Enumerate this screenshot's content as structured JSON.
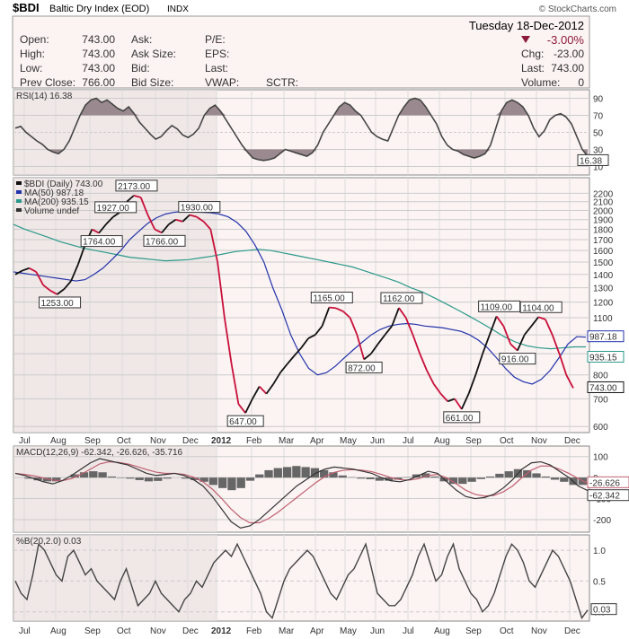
{
  "header": {
    "symbol": "$BDI",
    "name": "Baltic Dry Index (EOD)",
    "exchange": "INDX",
    "copyright": "© StockCharts.com",
    "date": "Tuesday 18-Dec-2012",
    "change_pct": "-3.00%",
    "fields": {
      "open_label": "Open:",
      "open": "743.00",
      "high_label": "High:",
      "high": "743.00",
      "low_label": "Low:",
      "low": "743.00",
      "prev_label": "Prev Close:",
      "prev": "766.00",
      "ask_label": "Ask:",
      "asksize_label": "Ask Size:",
      "bid_label": "Bid:",
      "bidsize_label": "Bid Size:",
      "pe_label": "P/E:",
      "eps_label": "EPS:",
      "last_label": "Last:",
      "vwap_label": "VWAP:",
      "sctr_label": "SCTR:",
      "chg_label": "Chg:",
      "chg": "-23.00",
      "last2_label": "Last:",
      "last2": "743.00",
      "volume_label": "Volume:",
      "volume": "0"
    },
    "colors": {
      "down": "#8b1a3a"
    }
  },
  "chart_data": [
    {
      "type": "line",
      "id": "rsi",
      "legend": "RSI(14) 16.38",
      "last_value": "16.38",
      "ylim": [
        0,
        100
      ],
      "yticks": [
        10,
        30,
        50,
        70,
        90
      ],
      "overbought": 70,
      "oversold": 30,
      "x": [
        0,
        4,
        8,
        12,
        16,
        20,
        24,
        28,
        32,
        36,
        40,
        44,
        48,
        52,
        56,
        60,
        64,
        68,
        72,
        76,
        80,
        84,
        88,
        92,
        96,
        100,
        104,
        108,
        112,
        116,
        120,
        124,
        128,
        132,
        136,
        140,
        144,
        148,
        152,
        156,
        160,
        164,
        168,
        172,
        176,
        180,
        184,
        188,
        192,
        196,
        200,
        204,
        208,
        212,
        216,
        220,
        224,
        228,
        232,
        236,
        240,
        244,
        248,
        252,
        256,
        260,
        264,
        268,
        272,
        276,
        280,
        284,
        288,
        292,
        296,
        300,
        304,
        308,
        312,
        316,
        320,
        324,
        328,
        332,
        336,
        340,
        344,
        348,
        352,
        356,
        360,
        364,
        368,
        372,
        376,
        380,
        384,
        388,
        392,
        396,
        400,
        404,
        408,
        412,
        416,
        420,
        424
      ],
      "values": [
        55,
        57,
        50,
        45,
        40,
        36,
        30,
        27,
        25,
        30,
        40,
        55,
        70,
        82,
        88,
        90,
        85,
        88,
        83,
        78,
        75,
        80,
        72,
        62,
        55,
        48,
        42,
        45,
        52,
        58,
        54,
        47,
        44,
        48,
        55,
        70,
        78,
        82,
        75,
        65,
        55,
        45,
        35,
        27,
        20,
        18,
        17,
        18,
        20,
        25,
        30,
        28,
        26,
        24,
        22,
        26,
        35,
        50,
        60,
        70,
        80,
        85,
        82,
        75,
        70,
        60,
        50,
        45,
        42,
        40,
        55,
        70,
        80,
        88,
        90,
        88,
        80,
        70,
        60,
        45,
        35,
        30,
        28,
        24,
        22,
        20,
        22,
        25,
        35,
        55,
        75,
        85,
        88,
        85,
        80,
        70,
        55,
        45,
        52,
        65,
        70,
        72,
        68,
        60,
        45,
        30,
        22
      ]
    },
    {
      "type": "line",
      "id": "price",
      "legend": [
        "$BDI (Daily) 743.00",
        "MA(50) 987.18",
        "MA(200) 935.15",
        "Volume undef"
      ],
      "series_names": [
        "$BDI (Daily)",
        "MA(50)",
        "MA(200)"
      ],
      "last_labels": {
        "price": "743.00",
        "ma50": "987.18",
        "ma200": "935.15"
      },
      "log_scale": true,
      "ylim": [
        580,
        2400
      ],
      "yticks": [
        600,
        700,
        800,
        900,
        1000,
        1100,
        1200,
        1300,
        1400,
        1500,
        1600,
        1700,
        1800,
        1900,
        2000,
        2100,
        2200
      ],
      "x": [
        0,
        4,
        8,
        12,
        16,
        20,
        24,
        28,
        32,
        36,
        40,
        44,
        48,
        52,
        56,
        60,
        64,
        68,
        72,
        76,
        80,
        84,
        88,
        92,
        96,
        100,
        104,
        108,
        112,
        116,
        120,
        124,
        128,
        132,
        136,
        140,
        144,
        148,
        152,
        156,
        160,
        164,
        168,
        172,
        176,
        180,
        184,
        188,
        192,
        196,
        200,
        204,
        208,
        212,
        216,
        220,
        224,
        228,
        232,
        236,
        240,
        244,
        248,
        252,
        256,
        260,
        264,
        268,
        272,
        276,
        280,
        284,
        288,
        292,
        296,
        300,
        304,
        308,
        312,
        316,
        320,
        324,
        328,
        332,
        336,
        340,
        344,
        348,
        352,
        356,
        360,
        364,
        368,
        372,
        376,
        380,
        384,
        388,
        392,
        396,
        400,
        404,
        408,
        412,
        416,
        420,
        424
      ],
      "price": [
        1400,
        1430,
        1450,
        1420,
        1320,
        1280,
        1253,
        1290,
        1350,
        1480,
        1650,
        1800,
        1764,
        1850,
        1927,
        1980,
        2100,
        2173,
        2150,
        1950,
        1800,
        1766,
        1850,
        1900,
        1880,
        1950,
        1930,
        1880,
        1800,
        1500,
        1100,
        850,
        680,
        647,
        700,
        750,
        720,
        760,
        810,
        850,
        890,
        930,
        980,
        1000,
        1050,
        1165,
        1160,
        1140,
        1100,
        1000,
        872,
        900,
        950,
        1000,
        1050,
        1162,
        1100,
        1000,
        900,
        820,
        760,
        720,
        690,
        700,
        661,
        720,
        800,
        900,
        1000,
        1109,
        1050,
        950,
        916,
        1000,
        1050,
        1104,
        1090,
        1000,
        900,
        800,
        743,
        743,
        743,
        743,
        743,
        743,
        743,
        743,
        743,
        743,
        743,
        743,
        743,
        743,
        743,
        743,
        743,
        743,
        743,
        743,
        743,
        743,
        743,
        743,
        743,
        743,
        743
      ],
      "points_shown": 81,
      "ma50": [
        1420,
        1410,
        1400,
        1390,
        1380,
        1370,
        1360,
        1350,
        1360,
        1400,
        1450,
        1520,
        1600,
        1700,
        1780,
        1860,
        1920,
        1960,
        1980,
        1990,
        1985,
        1980,
        1975,
        1960,
        1930,
        1870,
        1780,
        1650,
        1500,
        1300,
        1150,
        1000,
        900,
        830,
        800,
        810,
        840,
        880,
        920,
        960,
        1000,
        1030,
        1050,
        1060,
        1065,
        1060,
        1050,
        1045,
        1040,
        1030,
        1020,
        1000,
        970,
        930,
        880,
        830,
        790,
        770,
        760,
        780,
        820,
        880,
        950,
        990,
        987
      ],
      "ma200": [
        1850,
        1800,
        1760,
        1720,
        1680,
        1650,
        1620,
        1600,
        1580,
        1560,
        1540,
        1530,
        1520,
        1510,
        1515,
        1520,
        1535,
        1550,
        1570,
        1590,
        1600,
        1610,
        1600,
        1580,
        1560,
        1540,
        1520,
        1500,
        1480,
        1460,
        1430,
        1400,
        1370,
        1340,
        1300,
        1270,
        1230,
        1190,
        1150,
        1110,
        1070,
        1030,
        990,
        960,
        940,
        930,
        925,
        930,
        935,
        935
      ]
    },
    {
      "type": "bar",
      "id": "macd",
      "legend": "MACD(12,26,9) -62.342, -26.626, -35.716",
      "last_labels": {
        "signal": "-26.626",
        "macd": "-62.342"
      },
      "ylim": [
        -260,
        150
      ],
      "yticks": [
        100,
        0,
        -100,
        -200
      ],
      "macd": [
        20,
        10,
        -5,
        -20,
        -30,
        -15,
        10,
        40,
        70,
        90,
        80,
        70,
        60,
        40,
        20,
        10,
        15,
        20,
        10,
        -10,
        -40,
        -90,
        -150,
        -210,
        -240,
        -230,
        -200,
        -160,
        -120,
        -80,
        -40,
        -10,
        20,
        40,
        50,
        45,
        40,
        30,
        20,
        0,
        -15,
        -20,
        -10,
        10,
        30,
        20,
        -20,
        -60,
        -90,
        -100,
        -95,
        -80,
        -50,
        -10,
        40,
        70,
        75,
        60,
        30,
        0,
        -40,
        -62
      ],
      "signal": [
        20,
        15,
        8,
        -2,
        -12,
        -15,
        -5,
        15,
        40,
        65,
        75,
        72,
        65,
        52,
        38,
        26,
        20,
        20,
        15,
        2,
        -20,
        -55,
        -100,
        -150,
        -190,
        -215,
        -215,
        -195,
        -165,
        -130,
        -95,
        -60,
        -25,
        5,
        25,
        35,
        38,
        35,
        28,
        15,
        0,
        -10,
        -12,
        -5,
        10,
        15,
        -2,
        -30,
        -60,
        -80,
        -88,
        -85,
        -68,
        -40,
        0,
        35,
        55,
        55,
        40,
        20,
        -5,
        -27
      ],
      "histogram": [
        0,
        -5,
        -13,
        -18,
        -18,
        0,
        15,
        25,
        30,
        25,
        5,
        -2,
        -5,
        -12,
        -18,
        -16,
        -5,
        0,
        -5,
        -12,
        -20,
        -35,
        -50,
        -60,
        -50,
        -15,
        15,
        35,
        45,
        50,
        55,
        50,
        45,
        35,
        25,
        10,
        2,
        -5,
        -8,
        -15,
        -15,
        -10,
        2,
        15,
        20,
        5,
        -18,
        -30,
        -30,
        -20,
        -7,
        5,
        18,
        30,
        40,
        35,
        20,
        5,
        -10,
        -20,
        -35,
        -35
      ]
    },
    {
      "type": "line",
      "id": "pctb",
      "legend": "%B(20,2.0) 0.03",
      "last_value": "0.03",
      "ylim": [
        -0.15,
        1.25
      ],
      "yticks": [
        1.0,
        0.5,
        0.0
      ],
      "values": [
        0.5,
        0.3,
        0.2,
        0.6,
        1.1,
        1.0,
        0.8,
        0.6,
        0.5,
        0.9,
        1.0,
        0.8,
        0.6,
        0.7,
        0.5,
        0.4,
        0.3,
        0.2,
        0.5,
        0.7,
        0.4,
        0.1,
        0.2,
        0.3,
        0.5,
        0.3,
        0.2,
        0.1,
        0.0,
        0.2,
        0.3,
        0.5,
        0.4,
        0.6,
        0.8,
        0.9,
        1.0,
        0.9,
        1.1,
        0.9,
        0.7,
        0.5,
        0.3,
        0.0,
        -0.1,
        0.2,
        0.5,
        0.7,
        0.8,
        0.9,
        1.0,
        0.9,
        0.7,
        0.5,
        0.3,
        0.2,
        0.4,
        0.6,
        0.7,
        0.9,
        1.1,
        0.7,
        0.3,
        0.2,
        0.1,
        0.1,
        0.2,
        0.4,
        0.6,
        0.9,
        1.1,
        0.8,
        0.5,
        0.6,
        0.9,
        1.1,
        0.7,
        0.5,
        0.3,
        0.2,
        0.0,
        0.1,
        0.3,
        0.6,
        0.9,
        1.1,
        1.0,
        0.8,
        0.5,
        0.4,
        0.6,
        0.8,
        1.0,
        0.9,
        0.7,
        0.5,
        0.2,
        -0.1,
        0.03
      ]
    }
  ],
  "x_axis": {
    "labels": [
      "Jul",
      "Aug",
      "Sep",
      "Oct",
      "Nov",
      "Dec",
      "2012",
      "Feb",
      "Mar",
      "Apr",
      "May",
      "Jun",
      "Jul",
      "Aug",
      "Sep",
      "Oct",
      "Nov",
      "Dec"
    ]
  },
  "annotations": [
    {
      "text": "1253.00",
      "x": 6,
      "y": 1253
    },
    {
      "text": "1927.00",
      "x": 14,
      "y": 1927
    },
    {
      "text": "1764.00",
      "x": 12,
      "y": 1764
    },
    {
      "text": "2173.00",
      "x": 17,
      "y": 2173
    },
    {
      "text": "1766.00",
      "x": 21,
      "y": 1766
    },
    {
      "text": "1930.00",
      "x": 26,
      "y": 1930
    },
    {
      "text": "647.00",
      "x": 33,
      "y": 647
    },
    {
      "text": "1165.00",
      "x": 45,
      "y": 1165
    },
    {
      "text": "872.00",
      "x": 50,
      "y": 872
    },
    {
      "text": "1162.00",
      "x": 55,
      "y": 1162
    },
    {
      "text": "661.00",
      "x": 64,
      "y": 661
    },
    {
      "text": "1109.00",
      "x": 69,
      "y": 1109
    },
    {
      "text": "916.00",
      "x": 72,
      "y": 916
    },
    {
      "text": "1104.00",
      "x": 75,
      "y": 1104
    }
  ]
}
